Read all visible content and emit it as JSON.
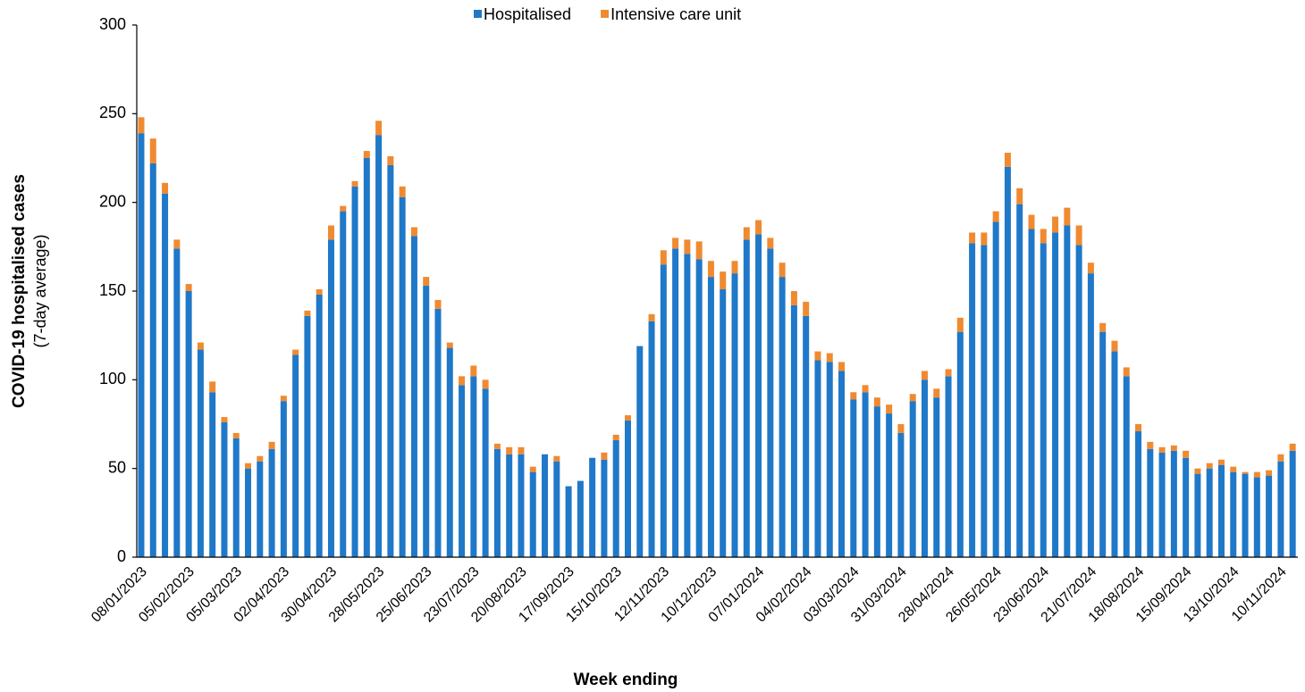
{
  "chart_data": {
    "type": "bar",
    "stacked": true,
    "xlabel": "Week ending",
    "ylabel": [
      "COVID-19 hospitalised cases",
      "(7-day average)"
    ],
    "categories": [
      "08/01/2023",
      null,
      null,
      null,
      "05/02/2023",
      null,
      null,
      null,
      "05/03/2023",
      null,
      null,
      null,
      "02/04/2023",
      null,
      null,
      null,
      "30/04/2023",
      null,
      null,
      null,
      "28/05/2023",
      null,
      null,
      null,
      "25/06/2023",
      null,
      null,
      null,
      "23/07/2023",
      null,
      null,
      null,
      "20/08/2023",
      null,
      null,
      null,
      "17/09/2023",
      null,
      null,
      null,
      "15/10/2023",
      null,
      null,
      null,
      "12/11/2023",
      null,
      null,
      null,
      "10/12/2023",
      null,
      null,
      null,
      "07/01/2024",
      null,
      null,
      null,
      "04/02/2024",
      null,
      null,
      null,
      "03/03/2024",
      null,
      null,
      null,
      "31/03/2024",
      null,
      null,
      null,
      "28/04/2024",
      null,
      null,
      null,
      "26/05/2024",
      null,
      null,
      null,
      "23/06/2024",
      null,
      null,
      null,
      "21/07/2024",
      null,
      null,
      null,
      "18/08/2024",
      null,
      null,
      null,
      "15/09/2024",
      null,
      null,
      null,
      "13/10/2024",
      null,
      null,
      null,
      "10/11/2024",
      null
    ],
    "series": [
      {
        "name": "Hospitalised",
        "color": "#1f78c8",
        "values": [
          239,
          222,
          205,
          174,
          150,
          117,
          93,
          76,
          67,
          50,
          54,
          61,
          88,
          114,
          136,
          148,
          179,
          195,
          209,
          225,
          238,
          221,
          203,
          181,
          153,
          140,
          118,
          97,
          102,
          95,
          61,
          58,
          58,
          48,
          58,
          54,
          40,
          43,
          56,
          55,
          66,
          77,
          119,
          133,
          165,
          174,
          171,
          168,
          158,
          151,
          160,
          179,
          182,
          174,
          158,
          142,
          136,
          111,
          110,
          105,
          89,
          93,
          85,
          81,
          70,
          88,
          100,
          90,
          102,
          127,
          177,
          176,
          189,
          220,
          199,
          185,
          177,
          183,
          187,
          176,
          160,
          127,
          116,
          102,
          71,
          61,
          59,
          60,
          56,
          47,
          50,
          52,
          48,
          47,
          45,
          46,
          54,
          60
        ]
      },
      {
        "name": "Intensive care unit",
        "color": "#f08a30",
        "values": [
          9,
          14,
          6,
          5,
          4,
          4,
          6,
          3,
          3,
          3,
          3,
          4,
          3,
          3,
          3,
          3,
          8,
          3,
          3,
          4,
          8,
          5,
          6,
          5,
          5,
          5,
          3,
          5,
          6,
          5,
          3,
          4,
          4,
          3,
          0,
          3,
          0,
          0,
          0,
          4,
          3,
          3,
          0,
          4,
          8,
          6,
          8,
          10,
          9,
          10,
          7,
          7,
          8,
          6,
          8,
          8,
          8,
          5,
          5,
          5,
          4,
          4,
          5,
          5,
          5,
          4,
          5,
          5,
          4,
          8,
          6,
          7,
          6,
          8,
          9,
          8,
          8,
          9,
          10,
          11,
          6,
          5,
          6,
          5,
          4,
          4,
          3,
          3,
          4,
          3,
          3,
          3,
          3,
          1,
          3,
          3,
          4,
          4
        ]
      }
    ],
    "ylim": [
      0,
      300
    ],
    "yticks": [
      0,
      50,
      100,
      150,
      200,
      250,
      300
    ],
    "grid": false,
    "legend": "top"
  }
}
